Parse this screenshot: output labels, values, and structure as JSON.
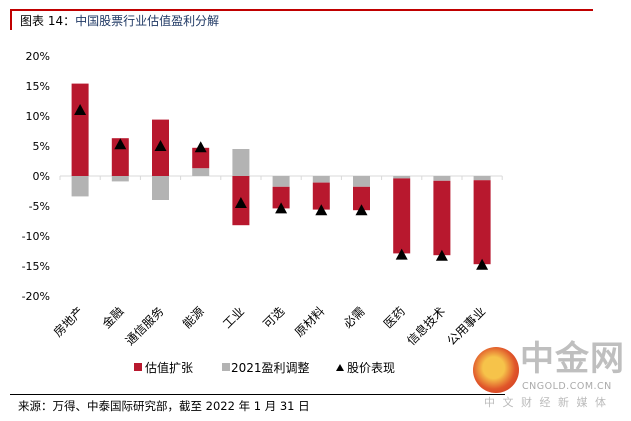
{
  "header": {
    "title_prefix": "图表 14：",
    "title": "中国股票行业估值盈利分解"
  },
  "source": "来源：万得、中泰国际研究部，截至 2022 年 1 月 31 日",
  "watermark": {
    "name": "中金网",
    "domain": "CNGOLD.COM.CN",
    "tagline": "中 文 财 经 新 媒 体"
  },
  "colors": {
    "valuation": "#b8182e",
    "earnings": "#b3b3b3",
    "price": "#000000"
  },
  "chart_data": {
    "type": "bar",
    "stacked": true,
    "title": "中国股票行业估值盈利分解",
    "categories": [
      "房地产",
      "金融",
      "通信服务",
      "能源",
      "工业",
      "可选",
      "原材料",
      "必需",
      "医药",
      "信息技术",
      "公用事业"
    ],
    "series": [
      {
        "name": "估值扩张",
        "type": "bar",
        "values": [
          15.4,
          6.3,
          9.4,
          3.4,
          -8.2,
          -3.6,
          -4.5,
          -3.9,
          -12.5,
          -12.4,
          -14.0
        ]
      },
      {
        "name": "2021盈利调整",
        "type": "bar",
        "values": [
          -3.4,
          -0.9,
          -4.0,
          1.3,
          4.5,
          -1.8,
          -1.1,
          -1.8,
          -0.4,
          -0.8,
          -0.7
        ]
      },
      {
        "name": "股价表现",
        "type": "marker",
        "values": [
          11.0,
          5.3,
          5.0,
          4.8,
          -4.5,
          -5.4,
          -5.7,
          -5.7,
          -13.1,
          -13.3,
          -14.8
        ]
      }
    ],
    "ylim": [
      -20,
      20
    ],
    "yticks": [
      20,
      15,
      10,
      5,
      0,
      -5,
      -10,
      -15,
      -20
    ],
    "ytick_labels": [
      "20%",
      "15%",
      "10%",
      "5%",
      "0%",
      "-5%",
      "-10%",
      "-15%",
      "-20%"
    ],
    "grid": false,
    "legend": "bottom",
    "xlabel": "",
    "ylabel": ""
  }
}
